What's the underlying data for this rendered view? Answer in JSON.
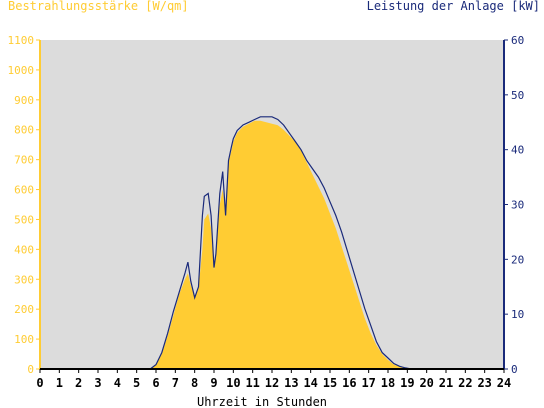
{
  "chart_data": {
    "type": "area",
    "left_axis_title": "Bestrahlungsstärke [W/qm]",
    "right_axis_title": "Leistung der Anlage [kW]",
    "xlabel": "Uhrzeit in Stunden",
    "xlim": [
      0,
      24
    ],
    "x_ticks": [
      "0",
      "1",
      "2",
      "3",
      "4",
      "5",
      "6",
      "7",
      "8",
      "9",
      "10",
      "11",
      "12",
      "13",
      "14",
      "15",
      "16",
      "17",
      "18",
      "19",
      "20",
      "21",
      "22",
      "23",
      "24"
    ],
    "y_left_lim": [
      0,
      1100
    ],
    "y_left_ticks": [
      "0",
      "100",
      "200",
      "300",
      "400",
      "500",
      "600",
      "700",
      "800",
      "900",
      "1000",
      "1100"
    ],
    "y_right_lim": [
      0,
      60
    ],
    "y_right_ticks": [
      "0",
      "10",
      "20",
      "30",
      "40",
      "50",
      "60"
    ],
    "grid": false,
    "colors": {
      "plot_background": "#dcdcdc",
      "irradiance_fill": "#ffcc33",
      "power_line": "#1a2a7a",
      "left_axis_text": "#ffcc33",
      "right_axis_text": "#1a2a7a"
    },
    "series": [
      {
        "axis": "left",
        "style": "area",
        "x": [
          0,
          5.7,
          6.0,
          6.3,
          6.6,
          6.9,
          7.2,
          7.5,
          7.65,
          7.8,
          8.0,
          8.2,
          8.4,
          8.5,
          8.7,
          8.85,
          9.0,
          9.1,
          9.3,
          9.45,
          9.6,
          9.75,
          9.9,
          10.0,
          10.2,
          10.5,
          10.8,
          11.1,
          11.4,
          11.7,
          12.0,
          12.3,
          12.6,
          12.9,
          13.2,
          13.5,
          13.8,
          14.1,
          14.4,
          14.7,
          15.0,
          15.3,
          15.6,
          15.9,
          16.2,
          16.5,
          16.8,
          17.1,
          17.4,
          17.7,
          18.0,
          18.3,
          18.6,
          18.9,
          19.2,
          19.5,
          24
        ],
        "y": [
          0,
          0,
          15,
          50,
          110,
          180,
          250,
          300,
          320,
          280,
          240,
          270,
          400,
          500,
          520,
          470,
          330,
          400,
          550,
          600,
          520,
          690,
          730,
          760,
          790,
          810,
          820,
          830,
          830,
          825,
          820,
          815,
          800,
          780,
          760,
          730,
          690,
          650,
          610,
          570,
          520,
          470,
          410,
          350,
          290,
          230,
          170,
          120,
          80,
          50,
          30,
          15,
          8,
          3,
          1,
          0,
          0
        ]
      },
      {
        "axis": "right",
        "style": "line",
        "x": [
          0,
          5.7,
          6.0,
          6.3,
          6.6,
          6.9,
          7.2,
          7.5,
          7.65,
          7.8,
          8.0,
          8.2,
          8.4,
          8.5,
          8.7,
          8.85,
          9.0,
          9.1,
          9.3,
          9.45,
          9.6,
          9.75,
          9.9,
          10.0,
          10.2,
          10.5,
          10.8,
          11.1,
          11.4,
          11.7,
          12.0,
          12.3,
          12.6,
          12.9,
          13.2,
          13.5,
          13.8,
          14.1,
          14.4,
          14.7,
          15.0,
          15.3,
          15.6,
          15.9,
          16.2,
          16.5,
          16.8,
          17.1,
          17.4,
          17.7,
          18.0,
          18.3,
          18.6,
          18.9,
          19.2,
          19.5,
          24
        ],
        "y": [
          0,
          0,
          0.8,
          3,
          6.5,
          10.5,
          14,
          17.5,
          19.5,
          16,
          13,
          15,
          28,
          31.5,
          32,
          28,
          18.5,
          21,
          32,
          36,
          28,
          38,
          40.5,
          42,
          43.5,
          44.5,
          45,
          45.5,
          46,
          46,
          46,
          45.5,
          44.5,
          43,
          41.5,
          40,
          38,
          36.5,
          35,
          33,
          30.5,
          28,
          25,
          21.5,
          18,
          14.5,
          11,
          8,
          5,
          3,
          2,
          1,
          0.5,
          0.2,
          0,
          0,
          0
        ]
      }
    ]
  }
}
